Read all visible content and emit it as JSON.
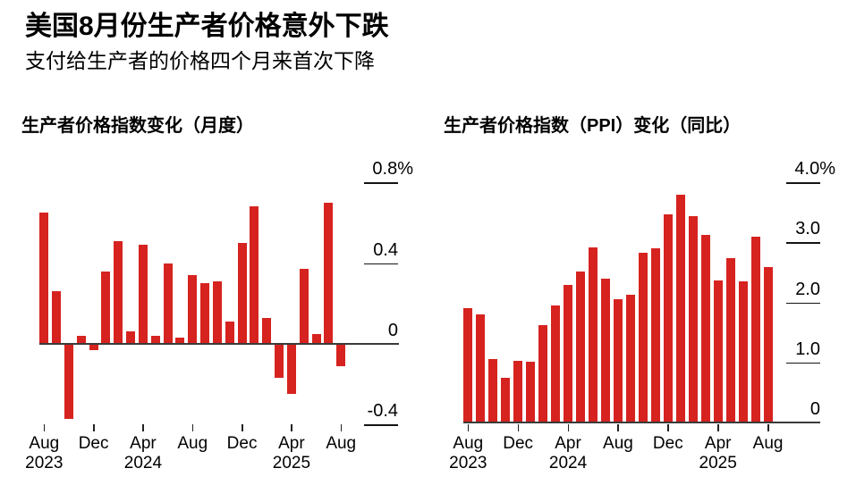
{
  "header": {
    "title": "美国8月份生产者价格意外下跌",
    "subtitle": "支付给生产者的价格四个月来首次下降"
  },
  "colors": {
    "bar_red": "#d6231f",
    "axis_line": "#3a3a3a",
    "grid_line": "#141414",
    "text": "#000000",
    "background": "#ffffff"
  },
  "charts": [
    {
      "title": "生产者价格指数变化（月度）",
      "chart_data": {
        "type": "bar",
        "title": "生产者价格指数变化（月度）",
        "xlabel": "",
        "ylabel": "",
        "unit": "%",
        "ylim": [
          -0.4,
          0.8
        ],
        "grid": "right-edge tick segments",
        "legend_position": "none",
        "categories": [
          "Aug 2023",
          "Sep 2023",
          "Oct 2023",
          "Nov 2023",
          "Dec 2023",
          "Jan 2024",
          "Feb 2024",
          "Mar 2024",
          "Apr 2024",
          "May 2024",
          "Jun 2024",
          "Jul 2024",
          "Aug 2024",
          "Sep 2024",
          "Oct 2024",
          "Nov 2024",
          "Dec 2024",
          "Jan 2025",
          "Feb 2025",
          "Mar 2025",
          "Apr 2025",
          "May 2025",
          "Jun 2025",
          "Jul 2025",
          "Aug 2025"
        ],
        "values": [
          0.65,
          0.26,
          -0.37,
          0.04,
          -0.03,
          0.36,
          0.51,
          0.06,
          0.49,
          0.04,
          0.4,
          0.03,
          0.34,
          0.3,
          0.31,
          0.11,
          0.5,
          0.68,
          0.13,
          -0.17,
          -0.25,
          0.37,
          0.05,
          0.7,
          -0.11
        ],
        "y_ticks": [
          {
            "label": "0.8%",
            "value": 0.8
          },
          {
            "label": "0.4",
            "value": 0.4
          },
          {
            "label": "0",
            "value": 0
          },
          {
            "label": "-0.4",
            "value": -0.4
          }
        ],
        "x_ticks": [
          {
            "label": "Aug",
            "year": "2023",
            "index": 0
          },
          {
            "label": "Dec",
            "index": 4
          },
          {
            "label": "Apr",
            "year": "2024",
            "index": 8
          },
          {
            "label": "Aug",
            "index": 12
          },
          {
            "label": "Dec",
            "index": 16
          },
          {
            "label": "Apr",
            "year": "2025",
            "index": 20
          },
          {
            "label": "Aug",
            "index": 24
          }
        ]
      }
    },
    {
      "title": "生产者价格指数（PPI）变化（同比）",
      "chart_data": {
        "type": "bar",
        "title": "生产者价格指数（PPI）变化（同比）",
        "xlabel": "",
        "ylabel": "",
        "unit": "%",
        "ylim": [
          0,
          4.0
        ],
        "grid": "right-edge tick segments",
        "legend_position": "none",
        "categories": [
          "Aug 2023",
          "Sep 2023",
          "Oct 2023",
          "Nov 2023",
          "Dec 2023",
          "Jan 2024",
          "Feb 2024",
          "Mar 2024",
          "Apr 2024",
          "May 2024",
          "Jun 2024",
          "Jul 2024",
          "Aug 2024",
          "Sep 2024",
          "Oct 2024",
          "Nov 2024",
          "Dec 2024",
          "Jan 2025",
          "Feb 2025",
          "Mar 2025",
          "Apr 2025",
          "May 2025",
          "Jun 2025",
          "Jul 2025",
          "Aug 2025"
        ],
        "values": [
          1.9,
          1.8,
          1.05,
          0.75,
          1.03,
          1.01,
          1.62,
          1.95,
          2.29,
          2.52,
          2.92,
          2.39,
          2.05,
          2.13,
          2.82,
          2.9,
          3.47,
          3.79,
          3.43,
          3.13,
          2.37,
          2.73,
          2.35,
          3.09,
          2.58
        ],
        "y_ticks": [
          {
            "label": "4.0%",
            "value": 4
          },
          {
            "label": "3.0",
            "value": 3
          },
          {
            "label": "2.0",
            "value": 2
          },
          {
            "label": "1.0",
            "value": 1
          },
          {
            "label": "0",
            "value": 0
          }
        ],
        "x_ticks": [
          {
            "label": "Aug",
            "year": "2023",
            "index": 0
          },
          {
            "label": "Dec",
            "index": 4
          },
          {
            "label": "Apr",
            "year": "2024",
            "index": 8
          },
          {
            "label": "Aug",
            "index": 12
          },
          {
            "label": "Dec",
            "index": 16
          },
          {
            "label": "Apr",
            "year": "2025",
            "index": 20
          },
          {
            "label": "Aug",
            "index": 24
          }
        ]
      }
    }
  ]
}
